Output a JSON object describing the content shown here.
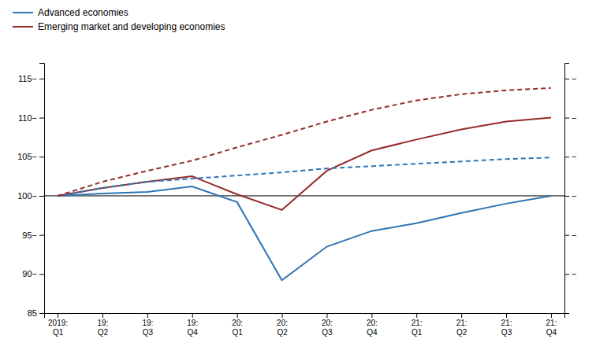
{
  "chart_data": {
    "type": "line",
    "categories": [
      "2019:\nQ1",
      "19:\nQ2",
      "19:\nQ3",
      "19:\nQ4",
      "20:\nQ1",
      "20:\nQ2",
      "20:\nQ3",
      "20:\nQ4",
      "21:\nQ1",
      "21:\nQ2",
      "21:\nQ3",
      "21:\nQ4"
    ],
    "series": [
      {
        "name": "Advanced economies",
        "color": "#2E75B6",
        "line_style": "solid",
        "values": [
          100,
          100.3,
          100.5,
          101.2,
          99.2,
          89.2,
          93.5,
          95.5,
          96.5,
          97.8,
          99.0,
          100.0
        ]
      },
      {
        "name": "Emerging market and developing economies",
        "color": "#962B2B",
        "line_style": "solid",
        "values": [
          100,
          101.0,
          101.8,
          102.5,
          100.2,
          98.2,
          103.2,
          105.8,
          107.2,
          108.5,
          109.5,
          110.0
        ]
      },
      {
        "color": "#2E75B6",
        "line_style": "dashed",
        "values": [
          100,
          101.0,
          101.8,
          102.2,
          102.6,
          103.0,
          103.5,
          103.8,
          104.1,
          104.4,
          104.7,
          104.9
        ]
      },
      {
        "color": "#962B2B",
        "line_style": "dashed",
        "values": [
          100,
          101.8,
          103.2,
          104.5,
          106.2,
          107.8,
          109.5,
          111.0,
          112.2,
          113.0,
          113.5,
          113.8
        ]
      }
    ],
    "ylim": [
      85,
      117
    ],
    "yticks": [
      85,
      {
        "value": 90,
        "label": "90−"
      },
      {
        "value": 95,
        "label": "95−"
      },
      {
        "value": 100,
        "label": "100−"
      },
      {
        "value": 105,
        "label": "105−"
      },
      {
        "value": 110,
        "label": "110−"
      },
      {
        "value": 115,
        "label": "115−"
      }
    ],
    "y2lim": [
      85,
      117
    ],
    "y2ticks": [
      {
        "value": 90,
        "label": "−"
      },
      {
        "value": 95,
        "label": "−"
      },
      {
        "value": 100,
        "label": "−"
      },
      {
        "value": 105,
        "label": "−"
      },
      {
        "value": 110,
        "label": "−"
      },
      {
        "value": 115,
        "label": "−"
      }
    ],
    "reference_line": 100,
    "legend": "upper left",
    "grid": false
  }
}
